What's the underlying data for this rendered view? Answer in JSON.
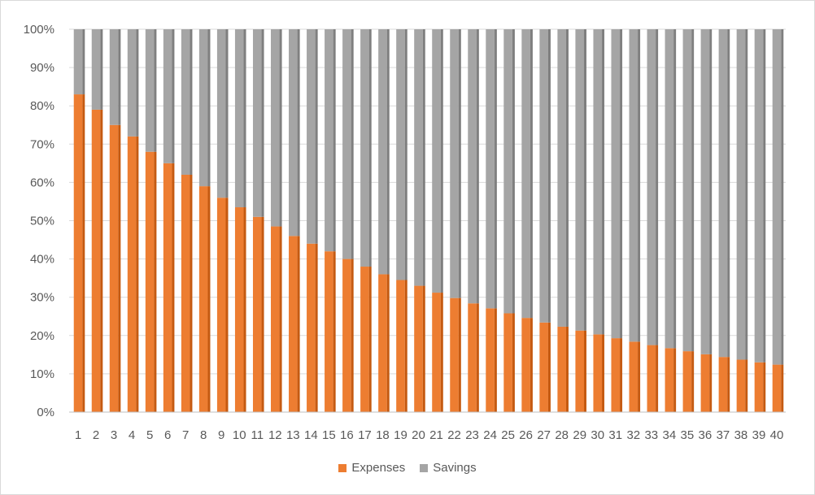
{
  "chart_data": {
    "type": "bar",
    "stacked": "percent",
    "categories": [
      "1",
      "2",
      "3",
      "4",
      "5",
      "6",
      "7",
      "8",
      "9",
      "10",
      "11",
      "12",
      "13",
      "14",
      "15",
      "16",
      "17",
      "18",
      "19",
      "20",
      "21",
      "22",
      "23",
      "24",
      "25",
      "26",
      "27",
      "28",
      "29",
      "30",
      "31",
      "32",
      "33",
      "34",
      "35",
      "36",
      "37",
      "38",
      "39",
      "40"
    ],
    "series": [
      {
        "name": "Expenses",
        "color": "#ED7D31",
        "values": [
          83,
          79,
          75,
          72,
          68,
          65,
          62,
          59,
          56,
          53.5,
          51,
          48.5,
          46,
          44,
          42,
          40,
          38,
          36,
          34.5,
          33,
          31.2,
          29.8,
          28.4,
          27.1,
          25.8,
          24.6,
          23.4,
          22.3,
          21.3,
          20.3,
          19.3,
          18.4,
          17.5,
          16.7,
          15.9,
          15.1,
          14.4,
          13.7,
          13.0,
          12.4
        ]
      },
      {
        "name": "Savings",
        "color": "#A5A5A5",
        "values": [
          17,
          21,
          25,
          28,
          32,
          35,
          38,
          41,
          44,
          46.5,
          49,
          51.5,
          54,
          56,
          58,
          60,
          62,
          64,
          65.5,
          67,
          68.8,
          70.2,
          71.6,
          72.9,
          74.2,
          75.4,
          76.6,
          77.7,
          78.7,
          79.7,
          80.7,
          81.6,
          82.5,
          83.3,
          84.1,
          84.9,
          85.6,
          86.3,
          87.0,
          87.6
        ]
      }
    ],
    "yticks": [
      "0%",
      "10%",
      "20%",
      "30%",
      "40%",
      "50%",
      "60%",
      "70%",
      "80%",
      "90%",
      "100%"
    ],
    "ylim": [
      0,
      100
    ],
    "grid": true,
    "legend": "bottom"
  }
}
